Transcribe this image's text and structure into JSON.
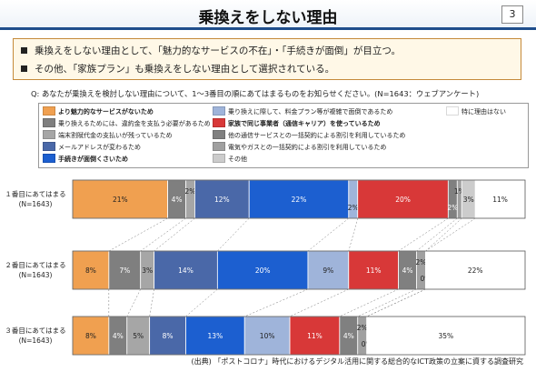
{
  "page": {
    "title": "乗換えをしない理由",
    "page_number": "3",
    "summary": [
      "乗換えをしない理由として、「魅力的なサービスの不在」・「手続きが面倒」が目立つ。",
      "その他、「家族プラン」も乗換えをしない理由として選択されている。"
    ],
    "question": "Q: あなたが乗換えを検討しない理由について、1～3番目の順にあてはまるものをお知らせください。(N=1643：ウェブアンケート)",
    "source": "(出典) 「ポストコロナ」時代におけるデジタル活用に関する総合的なICT政策の立案に資する調査研究"
  },
  "chart_data": {
    "type": "bar",
    "orientation": "horizontal",
    "stacked": "100%",
    "categories": [
      "１番目にあてはまる\n(N=1643)",
      "２番目にあてはまる\n(N=1643)",
      "３番目にあてはまる\n(N=1643)"
    ],
    "series": [
      {
        "name": "より魅力的なサービスがないため",
        "color": "#f0a050",
        "values": [
          21,
          8,
          8
        ],
        "bold": true
      },
      {
        "name": "乗り換えるためには、違約金を支払う必要があるため",
        "color": "#7f7f7f",
        "values": [
          4,
          7,
          4
        ],
        "bold": false
      },
      {
        "name": "端末割賦代金の支払いが残っているため",
        "color": "#a6a6a6",
        "values": [
          2,
          3,
          5
        ],
        "bold": false
      },
      {
        "name": "メールアドレスが変わるため",
        "color": "#4a68a8",
        "values": [
          12,
          14,
          8
        ],
        "bold": false
      },
      {
        "name": "手続きが面倒くさいため",
        "color": "#1c5fd0",
        "values": [
          22,
          20,
          13
        ],
        "bold": true
      },
      {
        "name": "乗り換えに際して、料金プラン等が複雑で面倒であるため",
        "color": "#9fb4da",
        "values": [
          2,
          9,
          10
        ],
        "bold": false
      },
      {
        "name": "家族で同じ事業者（通信キャリア）を使っているため",
        "color": "#d83838",
        "values": [
          20,
          11,
          11
        ],
        "bold": true
      },
      {
        "name": "他の通信サービスとの一括契約による割引を利用しているため",
        "color": "#808080",
        "values": [
          2,
          4,
          4
        ],
        "bold": false
      },
      {
        "name": "電気やガスとの一括契約による割引を利用しているため",
        "color": "#a0a0a0",
        "values": [
          1,
          2,
          2
        ],
        "bold": false
      },
      {
        "name": "その他",
        "color": "#cccccc",
        "values": [
          3,
          0,
          0
        ],
        "bold": false
      },
      {
        "name": "特に理由はない",
        "color": "#ffffff",
        "values": [
          11,
          22,
          35
        ],
        "bold": false
      }
    ],
    "data_labels": [
      [
        "21%",
        "4%",
        "2%",
        "12%",
        "22%",
        "2%",
        "20%",
        "2%",
        "1%",
        "3%",
        "11%"
      ],
      [
        "8%",
        "7%",
        "3%",
        "14%",
        "20%",
        "9%",
        "11%",
        "4%",
        "2%",
        "0%",
        "22%"
      ],
      [
        "8%",
        "4%",
        "5%",
        "8%",
        "13%",
        "10%",
        "11%",
        "4%",
        "2%",
        "0%",
        "35%"
      ]
    ],
    "xlim": [
      0,
      100
    ]
  }
}
